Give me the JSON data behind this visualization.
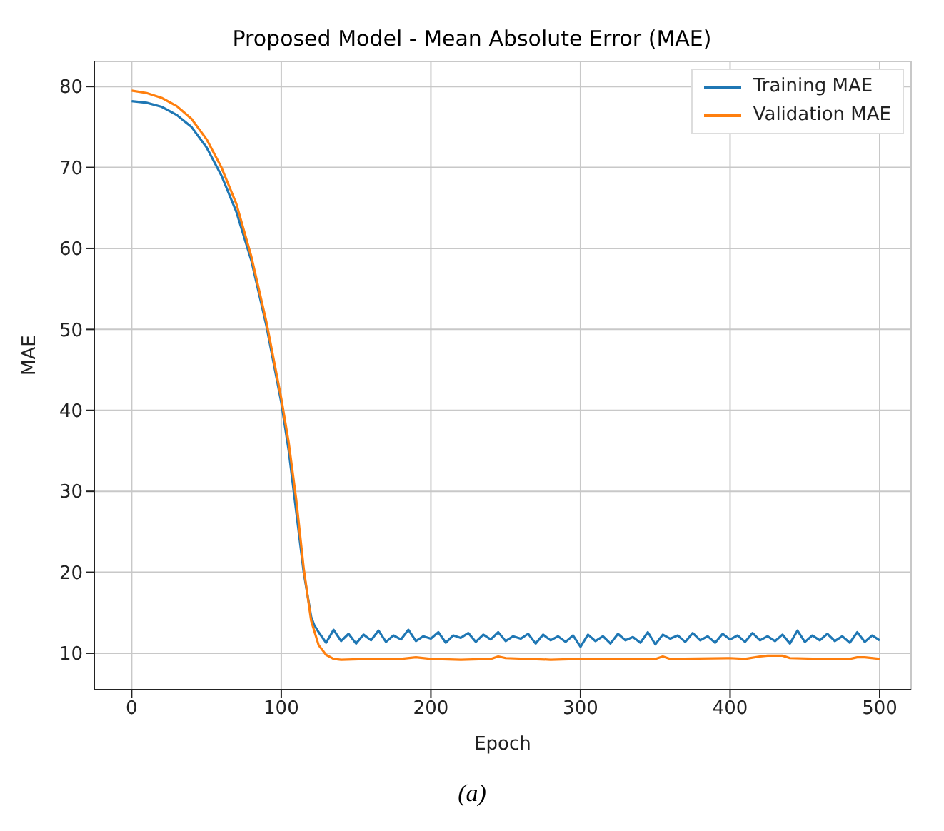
{
  "chart_data": {
    "type": "line",
    "title": "Proposed Model - Mean Absolute Error (MAE)",
    "xlabel": "Epoch",
    "ylabel": "MAE",
    "annotations": [
      "(a)"
    ],
    "xlim": [
      -25,
      521
    ],
    "ylim": [
      5.5,
      83.1
    ],
    "xticks": [
      0,
      100,
      200,
      300,
      400,
      500
    ],
    "yticks": [
      10,
      20,
      30,
      40,
      50,
      60,
      70,
      80
    ],
    "grid": true,
    "legend": "top right",
    "marker": "none",
    "line_style": "solid",
    "series": [
      {
        "name": "Training MAE",
        "color": "#1f77b4",
        "x": [
          0,
          10,
          20,
          30,
          40,
          50,
          60,
          70,
          80,
          90,
          100,
          105,
          110,
          115,
          120,
          122,
          125,
          130,
          135,
          140,
          145,
          150,
          155,
          160,
          165,
          170,
          175,
          180,
          185,
          190,
          195,
          200,
          205,
          210,
          215,
          220,
          225,
          230,
          235,
          240,
          245,
          250,
          255,
          260,
          265,
          270,
          275,
          280,
          285,
          290,
          295,
          300,
          305,
          310,
          315,
          320,
          325,
          330,
          335,
          340,
          345,
          350,
          355,
          360,
          365,
          370,
          375,
          380,
          385,
          390,
          395,
          400,
          405,
          410,
          415,
          420,
          425,
          430,
          435,
          440,
          445,
          450,
          455,
          460,
          465,
          470,
          475,
          480,
          485,
          490,
          495,
          500
        ],
        "values": [
          78.2,
          78,
          77.5,
          76.5,
          75,
          72.5,
          69,
          64.5,
          58.5,
          50.5,
          41,
          35,
          27.5,
          20,
          14.5,
          13.5,
          12.6,
          11.3,
          12.9,
          11.5,
          12.4,
          11.2,
          12.3,
          11.6,
          12.8,
          11.4,
          12.2,
          11.7,
          12.9,
          11.5,
          12.1,
          11.8,
          12.6,
          11.3,
          12.2,
          11.9,
          12.5,
          11.4,
          12.3,
          11.7,
          12.6,
          11.5,
          12.1,
          11.8,
          12.4,
          11.2,
          12.3,
          11.6,
          12.1,
          11.4,
          12.2,
          10.8,
          12.3,
          11.5,
          12.1,
          11.2,
          12.4,
          11.6,
          12.0,
          11.3,
          12.6,
          11.1,
          12.3,
          11.8,
          12.2,
          11.4,
          12.5,
          11.6,
          12.1,
          11.3,
          12.4,
          11.7,
          12.2,
          11.4,
          12.5,
          11.6,
          12.1,
          11.5,
          12.3,
          11.2,
          12.8,
          11.4,
          12.2,
          11.6,
          12.4,
          11.5,
          12.1,
          11.3,
          12.6,
          11.4,
          12.2,
          11.6
        ]
      },
      {
        "name": "Validation MAE",
        "color": "#ff7f0e",
        "x": [
          0,
          10,
          20,
          30,
          40,
          50,
          60,
          70,
          80,
          90,
          100,
          105,
          110,
          115,
          120,
          125,
          130,
          135,
          140,
          160,
          180,
          190,
          200,
          220,
          240,
          245,
          250,
          280,
          300,
          340,
          350,
          355,
          360,
          400,
          410,
          420,
          425,
          435,
          440,
          460,
          480,
          485,
          490,
          500
        ],
        "values": [
          79.5,
          79.2,
          78.6,
          77.6,
          76,
          73.5,
          70,
          65.5,
          59,
          51,
          41.5,
          36,
          29,
          20.5,
          14,
          11,
          9.8,
          9.3,
          9.2,
          9.3,
          9.3,
          9.5,
          9.3,
          9.2,
          9.3,
          9.6,
          9.4,
          9.2,
          9.3,
          9.3,
          9.3,
          9.6,
          9.3,
          9.4,
          9.3,
          9.6,
          9.7,
          9.7,
          9.4,
          9.3,
          9.3,
          9.5,
          9.5,
          9.3
        ]
      }
    ]
  }
}
